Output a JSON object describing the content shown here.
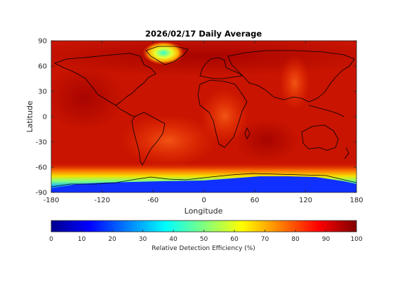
{
  "chart_data": {
    "type": "heatmap",
    "title": "2026/02/17 Daily Average",
    "xlabel": "Longitude",
    "ylabel": "Latitude",
    "xlim": [
      -180,
      180
    ],
    "ylim": [
      -90,
      90
    ],
    "xticks": [
      "-180",
      "-120",
      "-60",
      "0",
      "60",
      "120",
      "180"
    ],
    "yticks": [
      "90",
      "60",
      "30",
      "0",
      "-30",
      "-60",
      "-90"
    ],
    "colorbar": {
      "label": "Relative Detection Efficiency (%)",
      "range": [
        0,
        100
      ],
      "ticks": [
        "0",
        "10",
        "20",
        "30",
        "40",
        "50",
        "60",
        "70",
        "80",
        "90",
        "100"
      ],
      "colormap": "jet"
    },
    "field_description_values": {
      "background_typical": 90,
      "tropics_typical": 88,
      "greenland_center": 40,
      "antarctica_interior": 10,
      "antarctic_coast": 55
    }
  }
}
